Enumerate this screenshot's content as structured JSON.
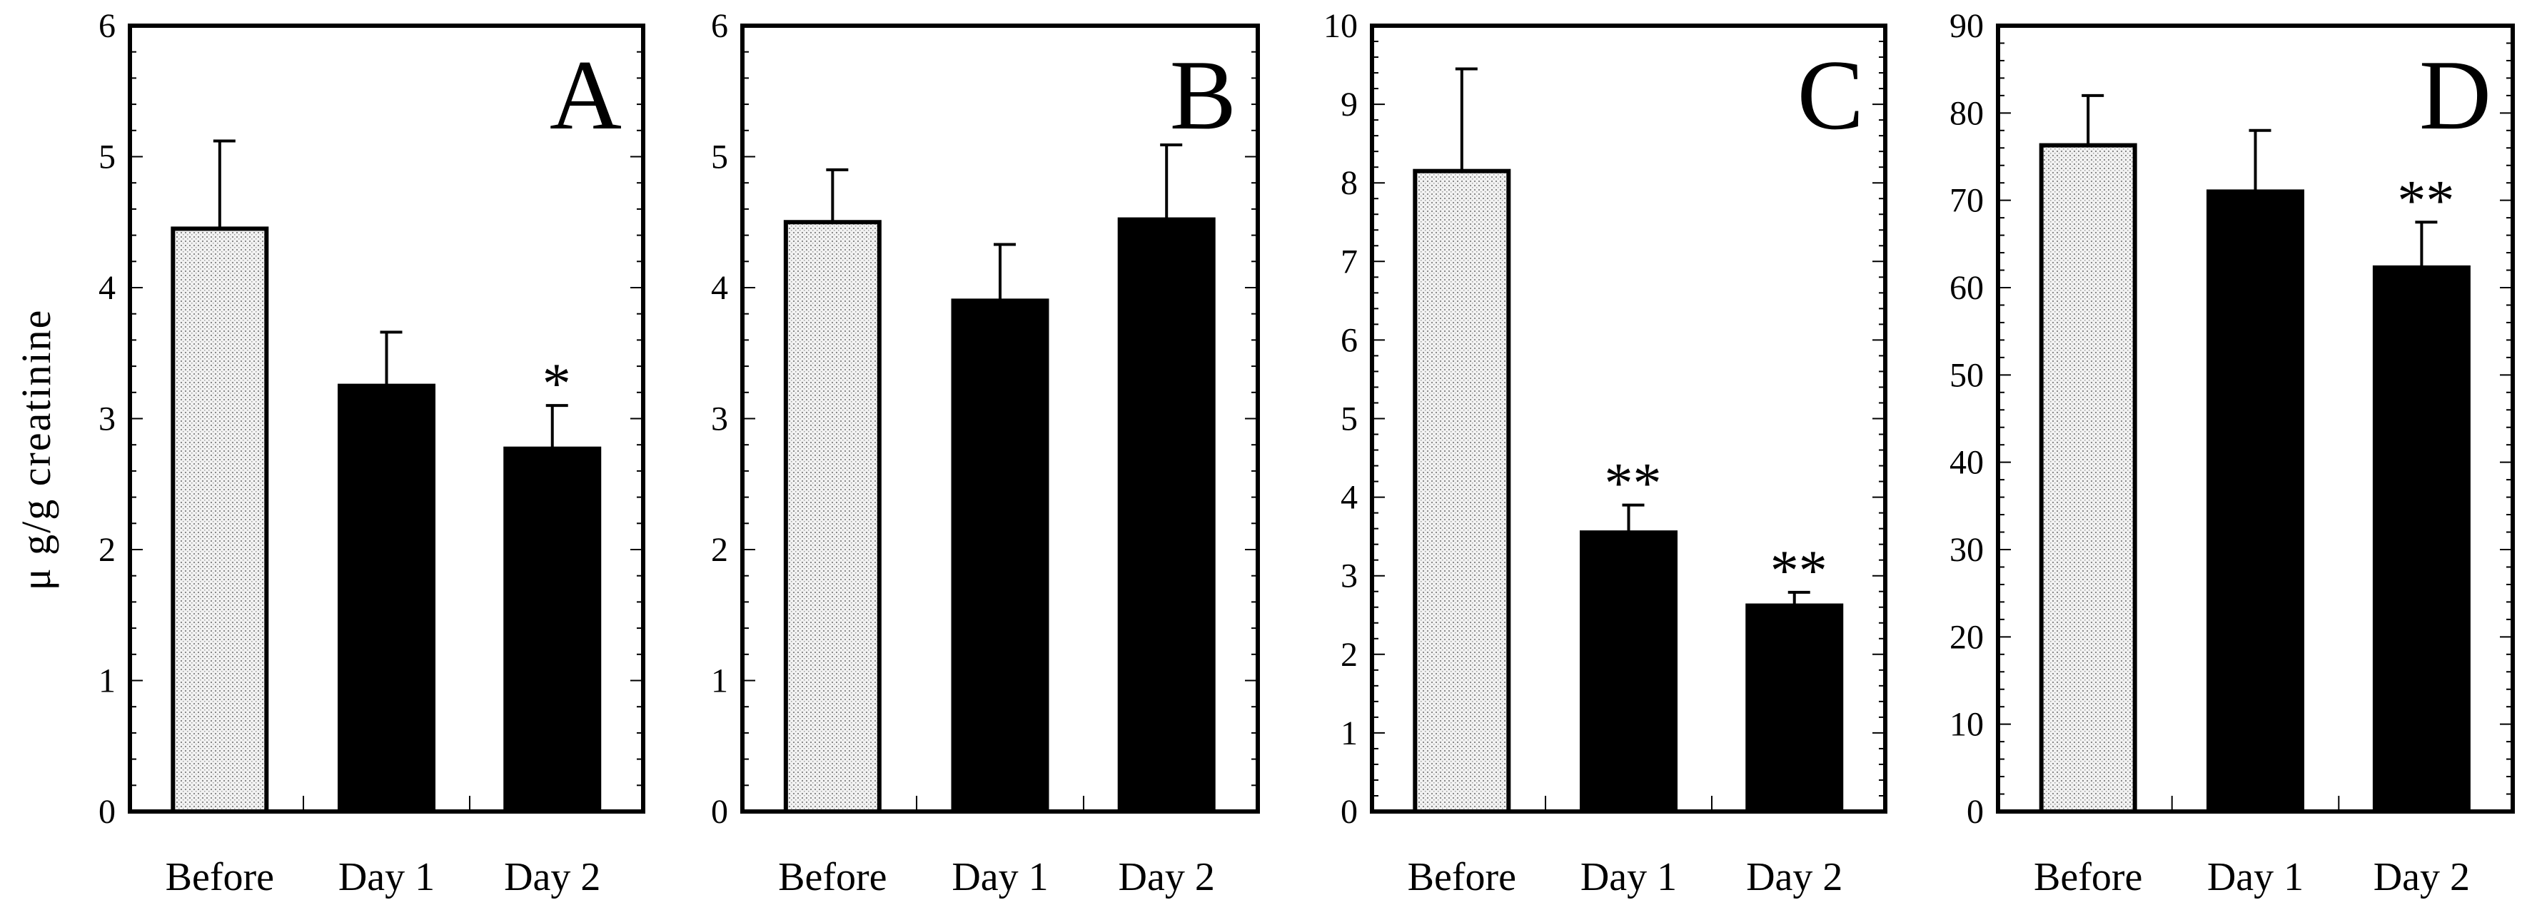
{
  "ylabel": "μ g/g creatinine",
  "colors": {
    "before_fill": "#e9e9e9",
    "day_fill": "#000000",
    "axis": "#000000"
  },
  "chart_data": [
    {
      "type": "bar",
      "panel": "A",
      "categories": [
        "Before",
        "Day 1",
        "Day 2"
      ],
      "values": [
        4.45,
        3.25,
        2.77
      ],
      "errors": [
        0.67,
        0.41,
        0.33
      ],
      "significance": [
        "",
        "",
        "*"
      ],
      "ylim": [
        0,
        6
      ],
      "yticks": [
        0,
        1,
        2,
        3,
        4,
        5,
        6
      ],
      "ytick_labels": [
        "0",
        "1",
        "2",
        "3",
        "4",
        "5",
        "6"
      ],
      "ylabel": "μ g/g creatinine"
    },
    {
      "type": "bar",
      "panel": "B",
      "categories": [
        "Before",
        "Day 1",
        "Day 2"
      ],
      "values": [
        4.5,
        3.9,
        4.52
      ],
      "errors": [
        0.4,
        0.43,
        0.57
      ],
      "significance": [
        "",
        "",
        ""
      ],
      "ylim": [
        0,
        6
      ],
      "yticks": [
        0,
        1,
        2,
        3,
        4,
        5,
        6
      ],
      "ytick_labels": [
        "0",
        "1",
        "2",
        "3",
        "4",
        "5",
        "6"
      ]
    },
    {
      "type": "bar",
      "panel": "C",
      "categories": [
        "Before",
        "Day 1",
        "Day 2"
      ],
      "values": [
        8.15,
        3.55,
        2.62
      ],
      "errors": [
        1.3,
        0.35,
        0.17
      ],
      "significance": [
        "",
        "**",
        "**"
      ],
      "ylim": [
        0,
        10
      ],
      "yticks": [
        0,
        1,
        2,
        3,
        4,
        5,
        6,
        7,
        8,
        9,
        10
      ],
      "ytick_labels": [
        "0",
        "1",
        "2",
        "3",
        "4",
        "5",
        "6",
        "7",
        "8",
        "9",
        "10"
      ]
    },
    {
      "type": "bar",
      "panel": "D",
      "categories": [
        "Before",
        "Day 1",
        "Day 2"
      ],
      "values": [
        76.3,
        71,
        62.3
      ],
      "errors": [
        5.7,
        7,
        5.2
      ],
      "significance": [
        "",
        "",
        "**"
      ],
      "ylim": [
        0,
        90
      ],
      "yticks": [
        0,
        10,
        20,
        30,
        40,
        50,
        60,
        70,
        80,
        90
      ],
      "ytick_labels": [
        "0",
        "10",
        "20",
        "30",
        "40",
        "50",
        "60",
        "70",
        "80",
        "90"
      ]
    }
  ]
}
